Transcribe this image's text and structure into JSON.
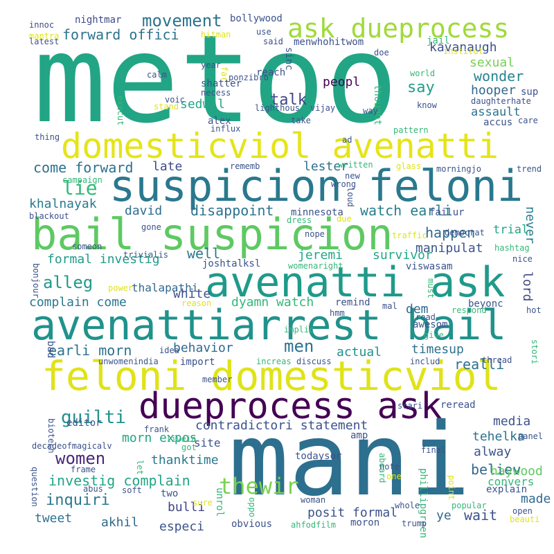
{
  "word_cloud": {
    "words": [
      {
        "text": "metoo",
        "color": "#21a585"
      },
      {
        "text": "mani",
        "color": "#2d6f8e"
      },
      {
        "text": "suspicion feloni",
        "color": "#2a788e"
      },
      {
        "text": "bail suspicion",
        "color": "#5ec962"
      },
      {
        "text": "avenatti ask",
        "color": "#1f9a8a"
      },
      {
        "text": "avenattiarrest bail",
        "color": "#20928c"
      },
      {
        "text": "feloni domesticviol",
        "color": "#dfe318"
      },
      {
        "text": "domesticviol avenatti",
        "color": "#e5e419"
      },
      {
        "text": "dueprocess ask",
        "color": "#440154"
      },
      {
        "text": "ask dueprocess",
        "color": "#a0da39"
      },
      {
        "text": "movement",
        "color": "#2c728e"
      },
      {
        "text": "forward offici",
        "color": "#2c728e"
      },
      {
        "text": "kavanaugh",
        "color": "#3b528b"
      },
      {
        "text": "sexual",
        "color": "#75d054"
      },
      {
        "text": "wonder",
        "color": "#25848e"
      },
      {
        "text": "say",
        "color": "#1f9e89"
      },
      {
        "text": "hooper",
        "color": "#31688e"
      },
      {
        "text": "assault",
        "color": "#2c728e"
      },
      {
        "text": "talk",
        "color": "#414487"
      },
      {
        "text": "sedwil",
        "color": "#22a884"
      },
      {
        "text": "come forward",
        "color": "#2c728e"
      },
      {
        "text": "lie",
        "color": "#35b779"
      },
      {
        "text": "late",
        "color": "#3e4a89"
      },
      {
        "text": "lester",
        "color": "#2d708e"
      },
      {
        "text": "khalnayak",
        "color": "#2a788e"
      },
      {
        "text": "david",
        "color": "#2e6e8e"
      },
      {
        "text": "disappoint",
        "color": "#2c728e"
      },
      {
        "text": "watch earli",
        "color": "#287d8e"
      },
      {
        "text": "never",
        "color": "#277f8e"
      },
      {
        "text": "happen",
        "color": "#31688e"
      },
      {
        "text": "trial",
        "color": "#21a585"
      },
      {
        "text": "formal investig",
        "color": "#1f9a8a"
      },
      {
        "text": "jeremi",
        "color": "#22a884"
      },
      {
        "text": "manipulat",
        "color": "#3b528b"
      },
      {
        "text": "survivor",
        "color": "#22a884"
      },
      {
        "text": "well",
        "color": "#2a788e"
      },
      {
        "text": "alleg",
        "color": "#1f9a8a"
      },
      {
        "text": "thalapathi",
        "color": "#31688e"
      },
      {
        "text": "lord",
        "color": "#414487"
      },
      {
        "text": "white",
        "color": "#3b528b"
      },
      {
        "text": "complain come",
        "color": "#2a788e"
      },
      {
        "text": "dyamn watch",
        "color": "#35b779"
      },
      {
        "text": "dem",
        "color": "#31688e"
      },
      {
        "text": "men",
        "color": "#2c728e"
      },
      {
        "text": "earli morn",
        "color": "#2c728e"
      },
      {
        "text": "behavior",
        "color": "#31688e"
      },
      {
        "text": "actual",
        "color": "#21918c"
      },
      {
        "text": "timesup",
        "color": "#2c728e"
      },
      {
        "text": "realli",
        "color": "#2c728e"
      },
      {
        "text": "guilti",
        "color": "#20928c"
      },
      {
        "text": "contradictori statement",
        "color": "#3b528b"
      },
      {
        "text": "women",
        "color": "#482878"
      },
      {
        "text": "morn expos",
        "color": "#21a585"
      },
      {
        "text": "media",
        "color": "#3b528b"
      },
      {
        "text": "tehelka",
        "color": "#2c728e"
      },
      {
        "text": "alway",
        "color": "#3b528b"
      },
      {
        "text": "inquiri",
        "color": "#2a788e"
      },
      {
        "text": "investig complain",
        "color": "#21a585"
      },
      {
        "text": "thanktime",
        "color": "#2a788e"
      },
      {
        "text": "believ",
        "color": "#31688e"
      },
      {
        "text": "haywood",
        "color": "#5ec962"
      },
      {
        "text": "thewir",
        "color": "#7ad151"
      },
      {
        "text": "posit formal",
        "color": "#3b528b"
      },
      {
        "text": "wait",
        "color": "#3b528b"
      },
      {
        "text": "made",
        "color": "#31688e"
      },
      {
        "text": "tweet",
        "color": "#2c728e"
      },
      {
        "text": "akhil",
        "color": "#31688e"
      },
      {
        "text": "bulli",
        "color": "#414487"
      },
      {
        "text": "especi",
        "color": "#3b528b"
      },
      {
        "text": "ye",
        "color": "#31688e"
      },
      {
        "text": "convers",
        "color": "#35b779"
      },
      {
        "text": "explain",
        "color": "#3b528b"
      },
      {
        "text": "nightmar",
        "color": "#3e4a89"
      },
      {
        "text": "bollywood",
        "color": "#3b528b"
      },
      {
        "text": "menwhohitwom",
        "color": "#3b528b"
      },
      {
        "text": "jail",
        "color": "#35b779"
      },
      {
        "text": "institut",
        "color": "#dfe318"
      },
      {
        "text": "innoc",
        "color": "#3e4a89"
      },
      {
        "text": "mantra",
        "color": "#dfe318"
      },
      {
        "text": "latest",
        "color": "#3b528b"
      },
      {
        "text": "hitman",
        "color": "#dfe318"
      },
      {
        "text": "use",
        "color": "#3b528b"
      },
      {
        "text": "said",
        "color": "#3e4a89"
      },
      {
        "text": "sinc",
        "color": "#3b528b"
      },
      {
        "text": "doe",
        "color": "#3b528b"
      },
      {
        "text": "calm",
        "color": "#3b528b"
      },
      {
        "text": "year",
        "color": "#3b528b"
      },
      {
        "text": "far",
        "color": "#dfe318"
      },
      {
        "text": "shatter",
        "color": "#3b528b"
      },
      {
        "text": "necess",
        "color": "#3b528b"
      },
      {
        "text": "ponzibro",
        "color": "#3b528b"
      },
      {
        "text": "reach",
        "color": "#3b528b"
      },
      {
        "text": "peopl",
        "color": "#440154"
      },
      {
        "text": "thought",
        "color": "#35b779"
      },
      {
        "text": "world",
        "color": "#35b779"
      },
      {
        "text": "know",
        "color": "#3b528b"
      },
      {
        "text": "sup",
        "color": "#3b528b"
      },
      {
        "text": "daughter",
        "color": "#3b528b"
      },
      {
        "text": "hate",
        "color": "#3b528b"
      },
      {
        "text": "voic",
        "color": "#3b528b"
      },
      {
        "text": "stand",
        "color": "#dfe318"
      },
      {
        "text": "execut",
        "color": "#35b779"
      },
      {
        "text": "lighthous",
        "color": "#3b528b"
      },
      {
        "text": "vijay",
        "color": "#3b528b"
      },
      {
        "text": "way",
        "color": "#3b528b"
      },
      {
        "text": "take",
        "color": "#3b528b"
      },
      {
        "text": "alex",
        "color": "#3b528b"
      },
      {
        "text": "influx",
        "color": "#3b528b"
      },
      {
        "text": "accus",
        "color": "#3b528b"
      },
      {
        "text": "care",
        "color": "#3b528b"
      },
      {
        "text": "pattern",
        "color": "#35b779"
      },
      {
        "text": "thing",
        "color": "#3b528b"
      },
      {
        "text": "ad",
        "color": "#3b528b"
      },
      {
        "text": "rememb",
        "color": "#3b528b"
      },
      {
        "text": "written",
        "color": "#35b779"
      },
      {
        "text": "glass",
        "color": "#dfe318"
      },
      {
        "text": "morningjo",
        "color": "#3b528b"
      },
      {
        "text": "trend",
        "color": "#3b528b"
      },
      {
        "text": "campaign",
        "color": "#35b779"
      },
      {
        "text": "new",
        "color": "#3b528b"
      },
      {
        "text": "wrong",
        "color": "#3b528b"
      },
      {
        "text": "loud",
        "color": "#3b528b"
      },
      {
        "text": "minnesota",
        "color": "#3b528b"
      },
      {
        "text": "failur",
        "color": "#3b528b"
      },
      {
        "text": "blackout",
        "color": "#3b528b"
      },
      {
        "text": "dress",
        "color": "#35b779"
      },
      {
        "text": "due",
        "color": "#dfe318"
      },
      {
        "text": "gone",
        "color": "#3b528b"
      },
      {
        "text": "nope",
        "color": "#3b528b"
      },
      {
        "text": "traffic",
        "color": "#dfe318"
      },
      {
        "text": "democrat",
        "color": "#3b528b"
      },
      {
        "text": "joshtalksl",
        "color": "#3b528b"
      },
      {
        "text": "hashtag",
        "color": "#35b779"
      },
      {
        "text": "someon",
        "color": "#3b528b"
      },
      {
        "text": "trivialis",
        "color": "#3b528b"
      },
      {
        "text": "womenaright",
        "color": "#35b779"
      },
      {
        "text": "viswasam",
        "color": "#3b528b"
      },
      {
        "text": "nice",
        "color": "#3b528b"
      },
      {
        "text": "bonjour",
        "color": "#3b528b"
      },
      {
        "text": "power",
        "color": "#dfe318"
      },
      {
        "text": "must",
        "color": "#35b779"
      },
      {
        "text": "reason",
        "color": "#dfe318"
      },
      {
        "text": "remind",
        "color": "#3b528b"
      },
      {
        "text": "beyonc",
        "color": "#3b528b"
      },
      {
        "text": "hmm",
        "color": "#3b528b"
      },
      {
        "text": "mal",
        "color": "#3b528b"
      },
      {
        "text": "respond",
        "color": "#35b779"
      },
      {
        "text": "hot",
        "color": "#3b528b"
      },
      {
        "text": "read",
        "color": "#3b528b"
      },
      {
        "text": "awesom",
        "color": "#3b528b"
      },
      {
        "text": "give",
        "color": "#35b779"
      },
      {
        "text": "bad",
        "color": "#3b528b"
      },
      {
        "text": "implic",
        "color": "#35b779"
      },
      {
        "text": "idea",
        "color": "#3b528b"
      },
      {
        "text": "stori",
        "color": "#35b779"
      },
      {
        "text": "unwomenindia",
        "color": "#3b528b"
      },
      {
        "text": "import",
        "color": "#3b528b"
      },
      {
        "text": "increas",
        "color": "#35b779"
      },
      {
        "text": "discuss",
        "color": "#3b528b"
      },
      {
        "text": "includ",
        "color": "#3b528b"
      },
      {
        "text": "thread",
        "color": "#3b528b"
      },
      {
        "text": "biotech",
        "color": "#3b528b"
      },
      {
        "text": "member",
        "color": "#3b528b"
      },
      {
        "text": "editor",
        "color": "#3b528b"
      },
      {
        "text": "scari",
        "color": "#3b528b"
      },
      {
        "text": "reread",
        "color": "#3b528b"
      },
      {
        "text": "site",
        "color": "#3b528b"
      },
      {
        "text": "amp",
        "color": "#3b528b"
      },
      {
        "text": "frank",
        "color": "#3b528b"
      },
      {
        "text": "livein",
        "color": "#35b779"
      },
      {
        "text": "decadeofmagicalv",
        "color": "#3b528b"
      },
      {
        "text": "got",
        "color": "#35b779"
      },
      {
        "text": "final",
        "color": "#3b528b"
      },
      {
        "text": "panel",
        "color": "#3b528b"
      },
      {
        "text": "frame",
        "color": "#3b528b"
      },
      {
        "text": "todaysor",
        "color": "#3b528b"
      },
      {
        "text": "question",
        "color": "#3b528b"
      },
      {
        "text": "let",
        "color": "#35b779"
      },
      {
        "text": "phillipgreen",
        "color": "#35b779"
      },
      {
        "text": "aboard",
        "color": "#35b779"
      },
      {
        "text": "note",
        "color": "#3b528b"
      },
      {
        "text": "point",
        "color": "#dfe318"
      },
      {
        "text": "abus",
        "color": "#3b528b"
      },
      {
        "text": "soft",
        "color": "#3b528b"
      },
      {
        "text": "one",
        "color": "#dfe318"
      },
      {
        "text": "two",
        "color": "#3b528b"
      },
      {
        "text": "unrol",
        "color": "#35b779"
      },
      {
        "text": "sure",
        "color": "#dfe318"
      },
      {
        "text": "oppo",
        "color": "#35b779"
      },
      {
        "text": "woman",
        "color": "#3b528b"
      },
      {
        "text": "whole",
        "color": "#3b528b"
      },
      {
        "text": "popular",
        "color": "#35b779"
      },
      {
        "text": "open",
        "color": "#3b528b"
      },
      {
        "text": "obvious",
        "color": "#3b528b"
      },
      {
        "text": "moron",
        "color": "#3b528b"
      },
      {
        "text": "trump",
        "color": "#3b528b"
      },
      {
        "text": "beauti",
        "color": "#dfe318"
      },
      {
        "text": "ahfodfilm",
        "color": "#35b779"
      }
    ]
  }
}
